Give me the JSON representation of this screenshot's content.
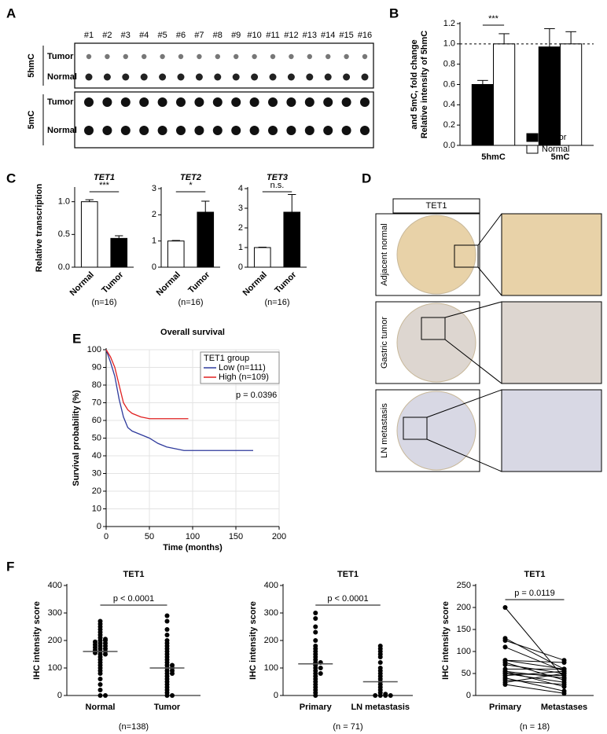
{
  "panel_letters": [
    "A",
    "B",
    "C",
    "D",
    "E",
    "F"
  ],
  "panel_a": {
    "samples": [
      "#1",
      "#2",
      "#3",
      "#4",
      "#5",
      "#6",
      "#7",
      "#8",
      "#9",
      "#10",
      "#11",
      "#12",
      "#13",
      "#14",
      "#15",
      "#16"
    ],
    "groups": [
      "5hmC",
      "5mC"
    ],
    "rows": [
      "Tumor",
      "Normal"
    ]
  },
  "panel_d": {
    "header": "TET1",
    "rows": [
      "Adjacent normal",
      "Gastric tumor",
      "LN metastasis"
    ]
  },
  "chart_data": [
    {
      "type": "bar",
      "ylabel": [
        "Relative intensity of 5hmC",
        "and 5mC, fold change"
      ],
      "categories": [
        "5hmC",
        "5mC"
      ],
      "series": [
        {
          "name": "Tumor",
          "color": "#000000",
          "values": [
            0.6,
            0.97
          ],
          "errors": [
            0.04,
            0.18
          ]
        },
        {
          "name": "Normal",
          "color": "#ffffff",
          "values": [
            1.0,
            1.0
          ],
          "errors": [
            0.1,
            0.12
          ]
        }
      ],
      "ylim": [
        0,
        1.2
      ],
      "yticks": [
        {
          "value": 0,
          "label": "0.0"
        },
        {
          "value": 0.2,
          "label": "0.2"
        },
        {
          "value": 0.4,
          "label": "0.4"
        },
        {
          "value": 0.6,
          "label": "0.6"
        },
        {
          "value": 0.8,
          "label": "0.8"
        },
        {
          "value": 1,
          "label": "1.0"
        },
        {
          "value": 1.2,
          "label": "1.2"
        }
      ],
      "reference_line": 1,
      "annotation": "***",
      "legend": "right"
    },
    {
      "type": "bar",
      "title": "TET1",
      "ylabel": "Relative transcription",
      "categories": [
        "Normal",
        "Tumor"
      ],
      "series": [
        {
          "colors": [
            "#ffffff",
            "#000000"
          ],
          "values": [
            1.0,
            0.44
          ],
          "errors": [
            0.03,
            0.04
          ]
        }
      ],
      "ylim": [
        0,
        1.2
      ],
      "yticks": [
        {
          "value": 0,
          "label": "0.0"
        },
        {
          "value": 0.5,
          "label": "0.5"
        },
        {
          "value": 1,
          "label": "1.0"
        }
      ],
      "annotation": "***",
      "n_label": "(n=16)"
    },
    {
      "type": "bar",
      "title": "TET2",
      "categories": [
        "Normal",
        "Tumor"
      ],
      "series": [
        {
          "colors": [
            "#ffffff",
            "#000000"
          ],
          "values": [
            1.0,
            2.1
          ],
          "errors": [
            0.02,
            0.42
          ]
        }
      ],
      "ylim": [
        0,
        3
      ],
      "yticks": [
        0,
        1,
        2,
        3
      ],
      "annotation": "*",
      "n_label": "(n=16)"
    },
    {
      "type": "bar",
      "title": "TET3",
      "categories": [
        "Normal",
        "Tumor"
      ],
      "series": [
        {
          "colors": [
            "#ffffff",
            "#000000"
          ],
          "values": [
            1.0,
            2.8
          ],
          "errors": [
            0.02,
            0.9
          ]
        }
      ],
      "ylim": [
        0,
        4
      ],
      "yticks": [
        0,
        1,
        2,
        3,
        4
      ],
      "annotation": "n.s.",
      "n_label": "(n=16)"
    },
    {
      "type": "line",
      "title": "Overall survival",
      "xlabel": "Time (months)",
      "ylabel": "Survival probability (%)",
      "legend_title": "TET1 group",
      "annotation": "p = 0.0396",
      "grid": true,
      "xlim": [
        0,
        200
      ],
      "xticks": [
        0,
        50,
        100,
        150,
        200
      ],
      "ylim": [
        0,
        100
      ],
      "yticks": [
        0,
        10,
        20,
        30,
        40,
        50,
        60,
        70,
        80,
        90,
        100
      ],
      "series": [
        {
          "name": "Low (n=111)",
          "color": "#2e3a9c",
          "x": [
            0,
            5,
            10,
            15,
            20,
            25,
            30,
            35,
            40,
            50,
            60,
            70,
            80,
            90,
            100,
            170
          ],
          "values": [
            100,
            93,
            85,
            72,
            62,
            56,
            54,
            53,
            52,
            50,
            47,
            45,
            44,
            43,
            43,
            43
          ]
        },
        {
          "name": "High (n=109)",
          "color": "#e02020",
          "x": [
            0,
            5,
            10,
            15,
            20,
            25,
            30,
            35,
            40,
            50,
            60,
            70,
            80,
            95
          ],
          "values": [
            100,
            96,
            90,
            80,
            70,
            66,
            64,
            63,
            62,
            61,
            61,
            61,
            61,
            61
          ]
        }
      ]
    },
    {
      "type": "dot",
      "title": "TET1",
      "ylabel": "IHC intensity score",
      "categories": [
        "Normal",
        "Tumor"
      ],
      "annotation": "p < 0.0001",
      "n_label": "(n=138)",
      "ylim": [
        0,
        400
      ],
      "yticks": [
        0,
        100,
        200,
        300,
        400
      ],
      "means": [
        160,
        100
      ],
      "values": [
        [
          270,
          260,
          250,
          240,
          230,
          220,
          210,
          205,
          200,
          200,
          195,
          190,
          190,
          185,
          180,
          180,
          175,
          170,
          170,
          165,
          160,
          160,
          155,
          150,
          150,
          140,
          130,
          120,
          110,
          100,
          90,
          80,
          60,
          40,
          20,
          0,
          0
        ],
        [
          290,
          270,
          240,
          220,
          200,
          190,
          180,
          170,
          160,
          150,
          140,
          130,
          120,
          110,
          110,
          100,
          100,
          90,
          90,
          80,
          80,
          70,
          60,
          50,
          40,
          30,
          20,
          10,
          0,
          0
        ]
      ]
    },
    {
      "type": "dot",
      "title": "TET1",
      "ylabel": "IHC intensity score",
      "categories": [
        "Primary",
        "LN metastasis"
      ],
      "annotation": "p < 0.0001",
      "n_label": "(n = 71)",
      "ylim": [
        0,
        400
      ],
      "yticks": [
        0,
        100,
        200,
        300,
        400
      ],
      "means": [
        115,
        50
      ],
      "values": [
        [
          300,
          280,
          250,
          230,
          200,
          180,
          170,
          160,
          150,
          140,
          130,
          120,
          120,
          110,
          100,
          100,
          90,
          80,
          80,
          70,
          60,
          50,
          40,
          30,
          20,
          10,
          0
        ],
        [
          180,
          170,
          160,
          150,
          140,
          120,
          100,
          90,
          80,
          70,
          60,
          50,
          40,
          30,
          20,
          10,
          5,
          0,
          0,
          0,
          0
        ]
      ]
    },
    {
      "type": "paired",
      "title": "TET1",
      "ylabel": "IHC intensity score",
      "categories": [
        "Primary",
        "Metastases"
      ],
      "annotation": "p = 0.0119",
      "n_label": "(n = 18)",
      "ylim": [
        0,
        250
      ],
      "yticks": [
        0,
        50,
        100,
        150,
        200,
        250
      ],
      "values": [
        [
          200,
          130,
          125,
          110,
          80,
          80,
          75,
          70,
          60,
          55,
          55,
          50,
          50,
          45,
          40,
          35,
          30,
          25
        ],
        [
          40,
          60,
          80,
          55,
          60,
          75,
          35,
          50,
          60,
          40,
          20,
          45,
          30,
          55,
          10,
          25,
          50,
          5
        ]
      ]
    }
  ]
}
